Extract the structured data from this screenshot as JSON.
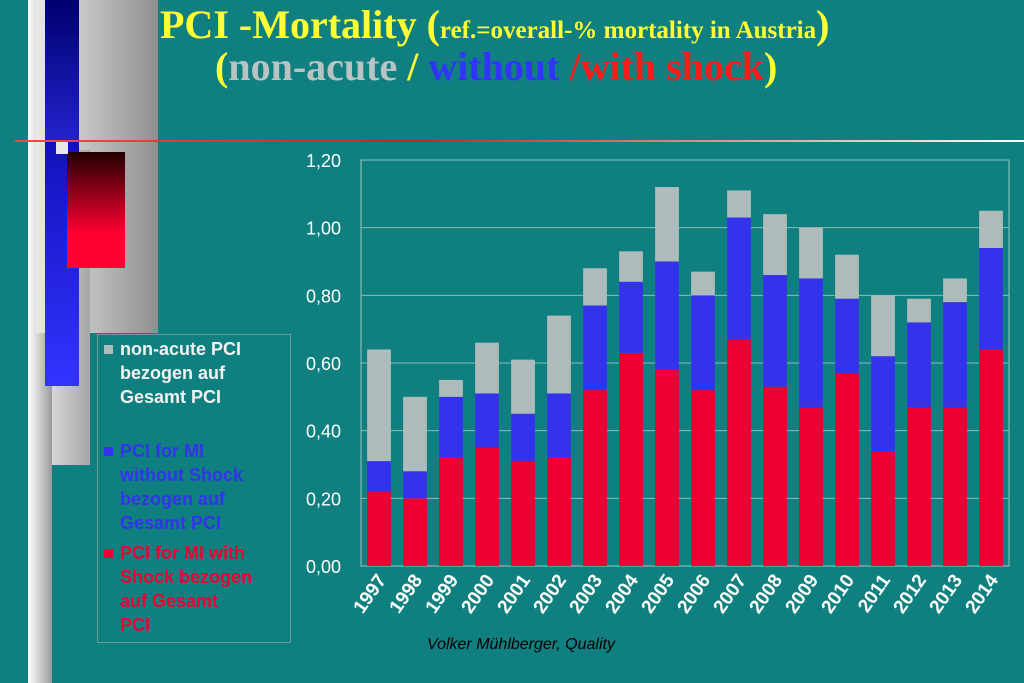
{
  "title": {
    "line1_main": "PCI -Mortality",
    "line1_paren_open": " (",
    "line1_ref": "ref.=overall-% mortality in Austria",
    "line1_paren_close": ")",
    "line2_open": "(",
    "line2_nonacute": "non-acute",
    "line2_sep1": " / ",
    "line2_without": "without",
    "line2_sep2": " /",
    "line2_with": "with shock",
    "line2_close": ")"
  },
  "footer": "Volker Mühlberger, Quality",
  "colors": {
    "background": "#0f7f7f",
    "title": "#ffff33",
    "non_acute": "#aebcbc",
    "without_shock": "#3333ee",
    "with_shock": "#ee0033"
  },
  "chart_data": {
    "type": "bar",
    "stacked": true,
    "categories": [
      "1997",
      "1998",
      "1999",
      "2000",
      "2001",
      "2002",
      "2003",
      "2004",
      "2005",
      "2006",
      "2007",
      "2008",
      "2009",
      "2010",
      "2011",
      "2012",
      "2013",
      "2014"
    ],
    "series": [
      {
        "name": "PCI for MI with Shock bezogen auf Gesamt PCI",
        "color": "#ee0033",
        "values": [
          0.22,
          0.2,
          0.32,
          0.35,
          0.31,
          0.32,
          0.52,
          0.63,
          0.58,
          0.52,
          0.67,
          0.53,
          0.47,
          0.57,
          0.34,
          0.47,
          0.47,
          0.64
        ]
      },
      {
        "name": "PCI for MI without Shock bezogen auf Gesamt PCI",
        "color": "#3333ee",
        "values": [
          0.09,
          0.08,
          0.18,
          0.16,
          0.14,
          0.19,
          0.25,
          0.21,
          0.32,
          0.28,
          0.36,
          0.33,
          0.38,
          0.22,
          0.28,
          0.25,
          0.31,
          0.3
        ]
      },
      {
        "name": "non-acute PCI bezogen auf Gesamt PCI",
        "color": "#aebcbc",
        "values": [
          0.33,
          0.22,
          0.05,
          0.15,
          0.16,
          0.23,
          0.11,
          0.09,
          0.22,
          0.07,
          0.08,
          0.18,
          0.15,
          0.13,
          0.18,
          0.07,
          0.07,
          0.11
        ]
      }
    ],
    "yticks": [
      "0,00",
      "0,20",
      "0,40",
      "0,60",
      "0,80",
      "1,00",
      "1,20"
    ],
    "ylim": [
      0,
      1.2
    ],
    "grid": true,
    "legend_placement": "left"
  },
  "legend": [
    {
      "label": "non-acute PCI bezogen auf Gesamt PCI",
      "lines": [
        "non-acute PCI",
        "bezogen auf",
        "Gesamt PCI"
      ],
      "color": "#aebcbc",
      "text_color": "#f2f2f2"
    },
    {
      "label": "PCI for MI without Shock bezogen auf Gesamt PCI",
      "lines": [
        "PCI for MI",
        "without Shock",
        "bezogen auf",
        "Gesamt PCI"
      ],
      "color": "#3333ee",
      "text_color": "#3333ee"
    },
    {
      "label": "PCI for MI with Shock bezogen auf Gesamt PCI",
      "lines": [
        "PCI for MI with",
        "Shock bezogen",
        "auf Gesamt",
        "PCI"
      ],
      "color": "#ee0033",
      "text_color": "#ee0033"
    }
  ]
}
